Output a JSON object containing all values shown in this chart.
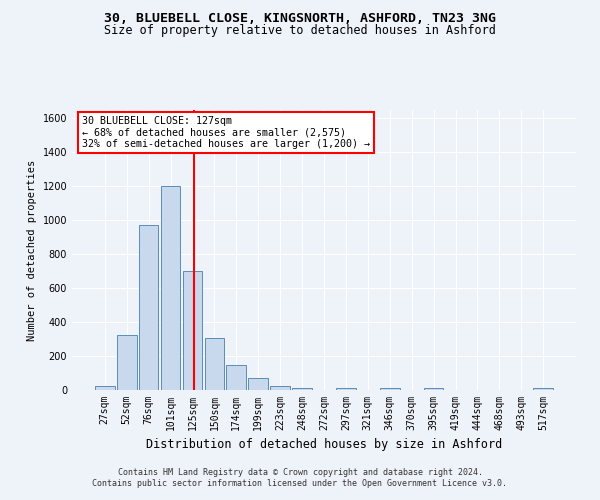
{
  "title1": "30, BLUEBELL CLOSE, KINGSNORTH, ASHFORD, TN23 3NG",
  "title2": "Size of property relative to detached houses in Ashford",
  "xlabel": "Distribution of detached houses by size in Ashford",
  "ylabel": "Number of detached properties",
  "footer1": "Contains HM Land Registry data © Crown copyright and database right 2024.",
  "footer2": "Contains public sector information licensed under the Open Government Licence v3.0.",
  "annotation_title": "30 BLUEBELL CLOSE: 127sqm",
  "annotation_line2": "← 68% of detached houses are smaller (2,575)",
  "annotation_line3": "32% of semi-detached houses are larger (1,200) →",
  "bar_categories": [
    "27sqm",
    "52sqm",
    "76sqm",
    "101sqm",
    "125sqm",
    "150sqm",
    "174sqm",
    "199sqm",
    "223sqm",
    "248sqm",
    "272sqm",
    "297sqm",
    "321sqm",
    "346sqm",
    "370sqm",
    "395sqm",
    "419sqm",
    "444sqm",
    "468sqm",
    "493sqm",
    "517sqm"
  ],
  "bar_values": [
    25,
    325,
    975,
    1200,
    700,
    305,
    150,
    70,
    25,
    12,
    0,
    12,
    0,
    12,
    0,
    12,
    0,
    0,
    0,
    0,
    12
  ],
  "bar_color": "#c8d9ee",
  "bar_edge_color": "#5b8db8",
  "vline_color": "red",
  "vline_x": 4.08,
  "ylim": [
    0,
    1650
  ],
  "yticks": [
    0,
    200,
    400,
    600,
    800,
    1000,
    1200,
    1400,
    1600
  ],
  "background_color": "#eef2f9",
  "grid_color": "white",
  "annotation_box_edge_color": "red",
  "annotation_box_face_color": "white",
  "title1_fontsize": 9.5,
  "title2_fontsize": 8.5,
  "xlabel_fontsize": 8.5,
  "ylabel_fontsize": 7.5,
  "tick_fontsize": 7,
  "footer_fontsize": 6.0
}
